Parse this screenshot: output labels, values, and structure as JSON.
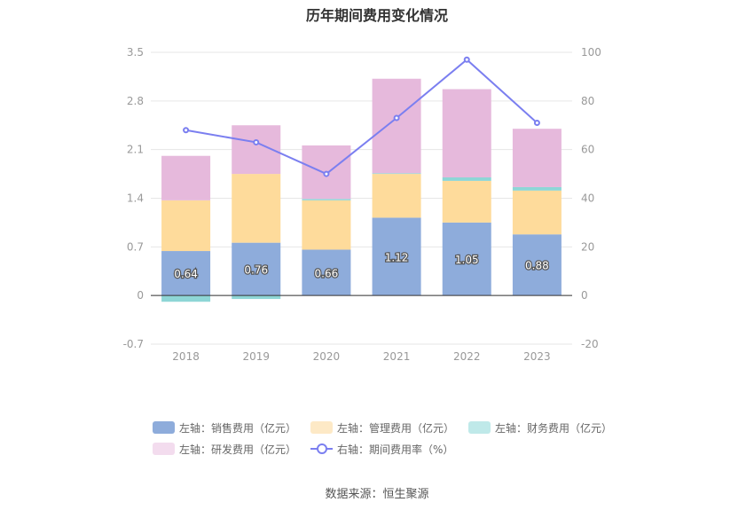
{
  "chart_data": {
    "type": "bar",
    "title": "历年期间费用变化情况",
    "categories": [
      "2018",
      "2019",
      "2020",
      "2021",
      "2022",
      "2023"
    ],
    "left_axis": {
      "ylim": [
        -0.7,
        3.5
      ],
      "ticks": [
        "3.5",
        "2.8",
        "2.1",
        "1.4",
        "0.7",
        "0",
        "-0.7"
      ]
    },
    "right_axis": {
      "ylim": [
        -20,
        100
      ],
      "ticks": [
        "100",
        "80",
        "60",
        "40",
        "20",
        "0",
        "-20"
      ]
    },
    "series": [
      {
        "name": "左轴：销售费用（亿元）",
        "color": "#8eacdb",
        "values": [
          0.64,
          0.76,
          0.66,
          1.12,
          1.05,
          0.88
        ],
        "labels": [
          "0.64",
          "0.76",
          "0.66",
          "1.12",
          "1.05",
          "0.88"
        ]
      },
      {
        "name": "左轴：管理费用（亿元）",
        "color": "#fedb9b",
        "values": [
          0.73,
          0.99,
          0.71,
          0.63,
          0.6,
          0.63
        ]
      },
      {
        "name": "左轴：财务费用（亿元）",
        "color": "#8ed6d6",
        "values": [
          -0.09,
          -0.05,
          0.02,
          0.01,
          0.05,
          0.05
        ]
      },
      {
        "name": "左轴：研发费用（亿元）",
        "color": "#e6b9dc",
        "values": [
          0.64,
          0.7,
          0.77,
          1.36,
          1.27,
          0.84
        ]
      },
      {
        "name": "右轴：期间费用率（%）",
        "color": "#7b7ff0",
        "axis": "right",
        "type": "line",
        "values": [
          68,
          63,
          50,
          73,
          97,
          71
        ]
      }
    ],
    "grid": true,
    "legend_position": "bottom"
  },
  "source": "数据来源：恒生聚源"
}
